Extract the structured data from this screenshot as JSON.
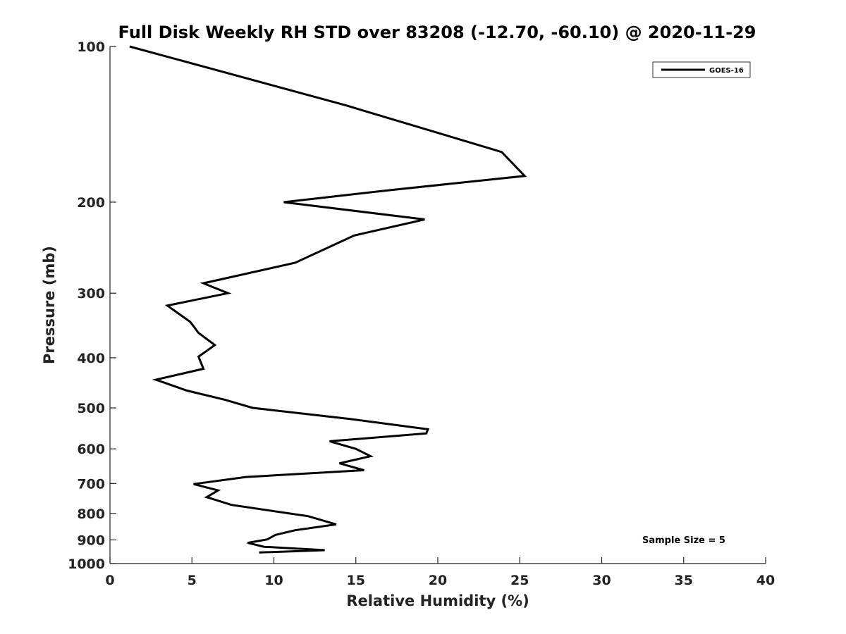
{
  "chart_data": {
    "type": "line",
    "title": "Full Disk Weekly RH STD over 83208 (-12.70, -60.10) @ 2020-11-29",
    "xlabel": "Relative Humidity (%)",
    "ylabel": "Pressure (mb)",
    "xlim": [
      0,
      40
    ],
    "ylim": [
      100,
      1000
    ],
    "yscale": "log",
    "y_reversed": true,
    "xticks": [
      0,
      5,
      10,
      15,
      20,
      25,
      30,
      35,
      40
    ],
    "yticks": [
      100,
      200,
      300,
      400,
      500,
      600,
      700,
      800,
      900,
      1000
    ],
    "grid": false,
    "legend_position": "top-right",
    "annotation": "Sample Size = 5",
    "series": [
      {
        "name": "GOES-16",
        "color": "#000000",
        "x": [
          1.2,
          14.4,
          23.9,
          25.3,
          16.8,
          10.6,
          19.2,
          14.9,
          11.3,
          5.7,
          7.2,
          3.5,
          4.9,
          5.4,
          6.4,
          5.4,
          5.7,
          2.8,
          4.7,
          7.0,
          8.7,
          14.6,
          19.4,
          19.3,
          13.4,
          15.0,
          15.9,
          14.0,
          15.5,
          8.3,
          5.1,
          6.6,
          5.9,
          7.4,
          12.1,
          13.8,
          11.3,
          10.1,
          9.6,
          8.4,
          9.4,
          13.1,
          9.1
        ],
        "y": [
          100,
          130,
          160,
          178,
          190,
          200,
          216,
          232,
          262,
          287,
          300,
          317,
          341,
          358,
          378,
          398,
          420,
          441,
          463,
          482,
          500,
          525,
          550,
          560,
          580,
          600,
          620,
          640,
          660,
          680,
          702,
          722,
          744,
          770,
          810,
          840,
          862,
          880,
          898,
          912,
          928,
          942,
          952
        ]
      }
    ]
  }
}
